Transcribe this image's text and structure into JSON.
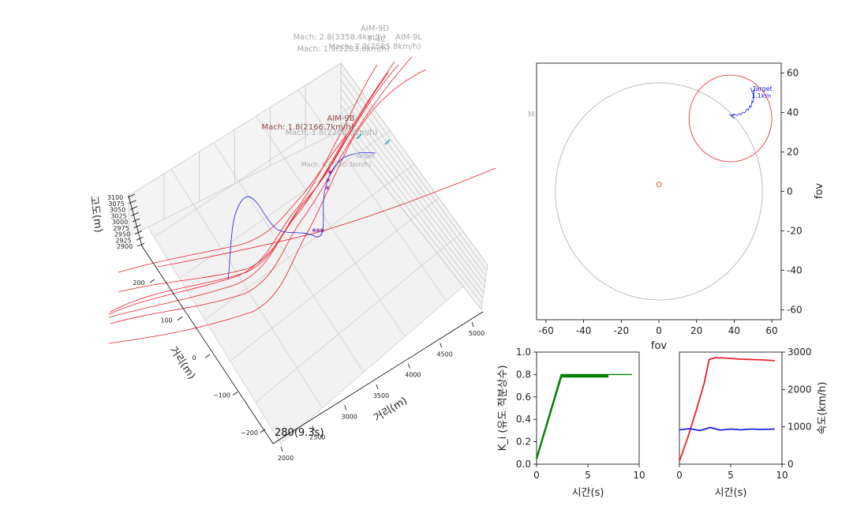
{
  "colors": {
    "missile": "#e8202a",
    "target": "#1f1fe6",
    "guidance_gain": "#008000",
    "star_marker": "#800080",
    "fov_circle": "#bdbdbd",
    "label_grey": "#a8a8a8",
    "label_brown": "#8a4a4a",
    "marker_cyan": "#1aaeae"
  },
  "chart_data": [
    {
      "id": "engagement-3d",
      "type": "line",
      "projection": "3d",
      "xlabel": "거리(m)",
      "ylabel": "거리(m)",
      "zlabel": "고도(m)",
      "x_ticks": [
        "2000",
        "2500",
        "3000",
        "3500",
        "4000",
        "4500",
        "5000"
      ],
      "y_ticks": [
        "−200",
        "−100",
        "0",
        "100",
        "200"
      ],
      "z_ticks": [
        "2900",
        "2925",
        "2950",
        "2975",
        "3000",
        "3025",
        "3050",
        "3075",
        "3100"
      ],
      "time_label": "280(9.3s)",
      "grid": true,
      "annotations": [
        {
          "text": "AIM-9D",
          "tone": "grey"
        },
        {
          "text": "Mach: 2.8(3358.4km/h)",
          "tone": "grey"
        },
        {
          "text": "AIM-9L",
          "tone": "grey"
        },
        {
          "text": "Mach: 2.2(2585.8km/h)",
          "tone": "grey"
        },
        {
          "text": "Mach: 1.9(2283.0km/h)",
          "tone": "grey"
        },
        {
          "text": "F-4C",
          "tone": "grey"
        },
        {
          "text": "AIM-9B",
          "tone": "brown"
        },
        {
          "text": "Mach: 1.8(2166.7km/h)",
          "tone": "brown"
        },
        {
          "text": "Mach: 1.8(2208.3km/h)",
          "tone": "grey"
        },
        {
          "text": "Target",
          "tone": "grey"
        },
        {
          "text": "Mach: 0.8(950.3km/h)",
          "tone": "grey"
        }
      ]
    },
    {
      "id": "seeker-fov",
      "type": "scatter",
      "xlabel": "fov",
      "ylabel": "fov",
      "xlim": [
        -65,
        65
      ],
      "ylim": [
        -65,
        65
      ],
      "x_ticks": [
        -60,
        -40,
        -20,
        0,
        20,
        40,
        60
      ],
      "y_ticks": [
        -60,
        -40,
        -20,
        0,
        20,
        40,
        60
      ],
      "fov_circle_radius": 55,
      "seeker_circle": {
        "center": [
          38,
          37
        ],
        "radius": 22
      },
      "center_marker": [
        0,
        3.5
      ],
      "target_track": {
        "x": [
          38.5,
          37.5,
          38.8,
          40.2,
          41.5,
          42.8,
          43.5,
          44.5,
          45.6,
          46.8,
          47.6,
          48.3,
          49.0,
          49.5,
          49.9,
          50.3,
          50.6,
          50.5,
          49.6,
          48.8
        ],
        "y": [
          38.2,
          39.0,
          38.2,
          39.1,
          38.4,
          39.5,
          38.8,
          40.2,
          39.8,
          41.8,
          41.2,
          43.5,
          42.6,
          45.8,
          45.0,
          48.0,
          47.3,
          51.5,
          50.2,
          52.6
        ]
      },
      "target_label": "Target",
      "target_range": "1.1km",
      "faded_label": "M"
    },
    {
      "id": "gain-vs-time",
      "type": "line",
      "xlabel": "시간(s)",
      "ylabel": "K_i (유도 적분상수)",
      "xlim": [
        0,
        10
      ],
      "ylim": [
        0,
        1.0
      ],
      "x_ticks": [
        0,
        5,
        10
      ],
      "y_ticks": [
        0.0,
        0.2,
        0.4,
        0.6,
        0.8,
        1.0
      ],
      "series": [
        {
          "x": [
            0,
            2.4,
            9.3
          ],
          "y": [
            0.05,
            0.8,
            0.8
          ]
        },
        {
          "x": [
            0,
            2.4,
            7.0
          ],
          "y": [
            0.05,
            0.78,
            0.78
          ]
        },
        {
          "x": [
            0,
            2.4,
            7.0
          ],
          "y": [
            0.05,
            0.79,
            0.79
          ]
        }
      ]
    },
    {
      "id": "speed-vs-time",
      "type": "line",
      "xlabel": "시간(s)",
      "ylabel": "속도(km/h)",
      "xlim": [
        0,
        10
      ],
      "ylim": [
        0,
        3000
      ],
      "x_ticks": [
        0,
        5,
        10
      ],
      "y_ticks": [
        0,
        1000,
        2000,
        3000
      ],
      "series": [
        {
          "color": "#e8202a",
          "x": [
            0,
            0.8,
            1.6,
            2.4,
            2.9,
            3.5,
            4.5,
            6.0,
            8.0,
            9.3
          ],
          "y": [
            80,
            700,
            1400,
            2150,
            2800,
            2850,
            2840,
            2810,
            2790,
            2770
          ]
        },
        {
          "color": "#1f1fe6",
          "x": [
            0,
            1.0,
            2.0,
            3.0,
            4.0,
            5.0,
            6.0,
            7.0,
            8.0,
            9.3
          ],
          "y": [
            920,
            950,
            900,
            980,
            910,
            940,
            920,
            940,
            930,
            940
          ]
        }
      ]
    }
  ]
}
